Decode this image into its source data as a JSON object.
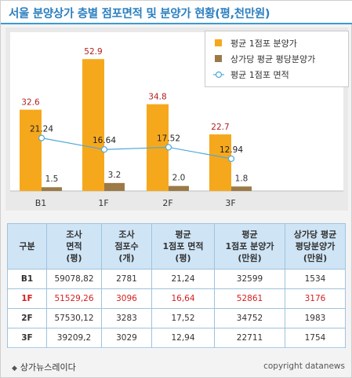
{
  "title": "서울 분양상가 층별 점포면적 및 분양가 현황(평,천만원)",
  "chart_data": {
    "type": "bar",
    "categories": [
      "B1",
      "1F",
      "2F",
      "3F"
    ],
    "series": [
      {
        "name": "평균 1점포 분양가",
        "kind": "bar",
        "color": "#f6a81c",
        "values": [
          32.6,
          52.9,
          34.8,
          22.7
        ]
      },
      {
        "name": "상가당 평균 평당분양가",
        "kind": "bar",
        "color": "#9b7a48",
        "values": [
          1.5,
          3.2,
          2.0,
          1.8
        ]
      },
      {
        "name": "평균 1점포 면적",
        "kind": "line",
        "color": "#4ea9d8",
        "values": [
          21.24,
          16.64,
          17.52,
          12.94
        ]
      }
    ],
    "value_labels": {
      "bar1": [
        "32.6",
        "52.9",
        "34.8",
        "22.7"
      ],
      "bar2": [
        "1.5",
        "3.2",
        "2.0",
        "1.8"
      ],
      "line": [
        "21.24",
        "16.64",
        "17.52",
        "12.94"
      ]
    },
    "ylim": [
      0,
      58
    ],
    "grid": false,
    "legend_position": "top-right"
  },
  "table": {
    "headers": [
      [
        "구분"
      ],
      [
        "조사",
        "면적",
        "(평)"
      ],
      [
        "조사",
        "점포수",
        "(개)"
      ],
      [
        "평균",
        "1점포 면적",
        "(평)"
      ],
      [
        "평균",
        "1점포 분양가",
        "(만원)"
      ],
      [
        "상가당 평균",
        "평당분양가",
        "(만원)"
      ]
    ],
    "rows": [
      {
        "cells": [
          "B1",
          "59078,82",
          "2781",
          "21,24",
          "32599",
          "1534"
        ],
        "highlight": false
      },
      {
        "cells": [
          "1F",
          "51529,26",
          "3096",
          "16,64",
          "52861",
          "3176"
        ],
        "highlight": true
      },
      {
        "cells": [
          "2F",
          "57530,12",
          "3283",
          "17,52",
          "34752",
          "1983"
        ],
        "highlight": false
      },
      {
        "cells": [
          "3F",
          "39209,2",
          "3029",
          "12,94",
          "22711",
          "1754"
        ],
        "highlight": false
      }
    ]
  },
  "footer": {
    "source": "상가뉴스레이다",
    "copyright": "copyright datanews"
  },
  "colors": {
    "title": "#2b7fc0",
    "highlight_row": "#d51f1f",
    "value_label_bar": "#b32020"
  }
}
